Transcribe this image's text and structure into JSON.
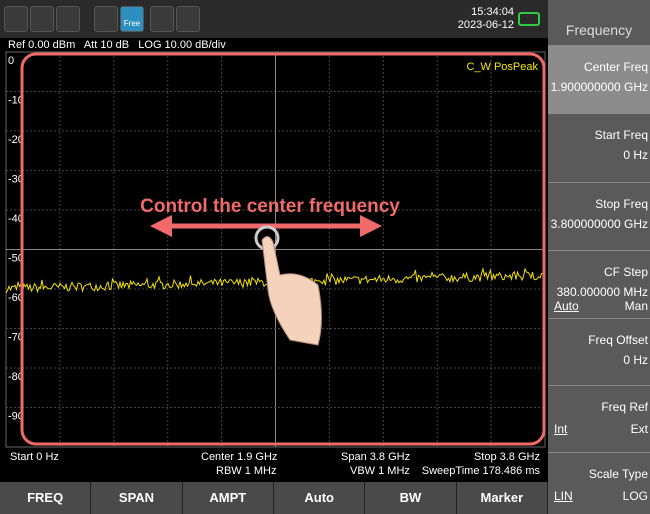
{
  "status": {
    "time": "15:34:04",
    "date": "2023-06-12",
    "mode": "Free"
  },
  "header": [
    "Ref 0.00 dBm",
    "Att 10 dB",
    "LOG 10.00 dB/div"
  ],
  "trace_label": "C_W PosPeak",
  "y_labels": [
    "0",
    "-10",
    "-20",
    "-30",
    "-40",
    "-50",
    "-60",
    "-70",
    "-80",
    "-90"
  ],
  "annotation": "Control the center frequency",
  "footer": {
    "start": "Start 0 Hz",
    "center": "Center 1.9 GHz",
    "rbw": "RBW 1 MHz",
    "span": "Span 3.8 GHz",
    "vbw": "VBW 1 MHz",
    "stop": "Stop 3.8 GHz",
    "sweep": "SweepTime 178.486 ms"
  },
  "softkeys": [
    "FREQ",
    "SPAN",
    "AMPT",
    "Auto",
    "BW",
    "Marker"
  ],
  "menu": {
    "title": "Frequency",
    "items": [
      {
        "label": "Center Freq",
        "value": "1.900000000 GHz"
      },
      {
        "label": "Start Freq",
        "value": "0 Hz"
      },
      {
        "label": "Stop Freq",
        "value": "3.800000000 GHz"
      },
      {
        "label": "CF Step",
        "value": "380.000000 MHz",
        "options": [
          "Auto",
          "Man"
        ]
      },
      {
        "label": "Freq Offset",
        "value": "0 Hz"
      },
      {
        "label": "Freq Ref",
        "options": [
          "Int",
          "Ext"
        ]
      },
      {
        "label": "Scale Type",
        "options": [
          "LIN",
          "LOG"
        ]
      }
    ]
  }
}
